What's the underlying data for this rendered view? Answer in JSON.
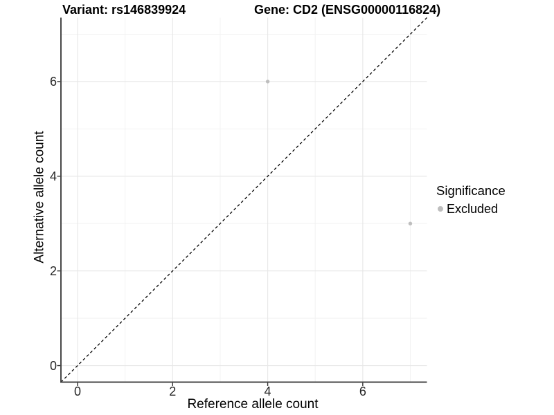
{
  "titles": {
    "left": "Variant: rs146839924",
    "right": "Gene: CD2 (ENSG00000116824)"
  },
  "chart_data": {
    "type": "scatter",
    "title_left": "Variant: rs146839924",
    "title_right": "Gene: CD2 (ENSG00000116824)",
    "xlabel": "Reference allele count",
    "ylabel": "Alternative allele count",
    "xlim": [
      -0.35,
      7.35
    ],
    "ylim": [
      -0.35,
      7.35
    ],
    "x_major_ticks": [
      0,
      2,
      4,
      6
    ],
    "x_minor_ticks": [
      1,
      3,
      5,
      7
    ],
    "y_major_ticks": [
      0,
      2,
      4,
      6
    ],
    "y_minor_ticks": [
      1,
      3,
      5,
      7
    ],
    "grid": true,
    "legend_position": "right",
    "series": [
      {
        "name": "Excluded",
        "color": "#bebebe",
        "points": [
          {
            "x": 4,
            "y": 6
          },
          {
            "x": 7,
            "y": 3
          }
        ]
      }
    ],
    "identity_line": {
      "description": "y = x dashed reference line",
      "style": "dashed",
      "color": "#000000",
      "from": [
        -0.35,
        -0.35
      ],
      "to": [
        7.35,
        7.35
      ]
    }
  },
  "legend": {
    "title": "Significance",
    "items": [
      {
        "label": "Excluded",
        "color": "#bebebe"
      }
    ]
  },
  "colors": {
    "background": "#ffffff",
    "grid_major": "#e8e8e8",
    "grid_minor": "#f2f2f2",
    "axis_line": "#474747",
    "tick_mark": "#333333",
    "point": "#bebebe",
    "identity_line": "#000000",
    "text": "#000000"
  }
}
